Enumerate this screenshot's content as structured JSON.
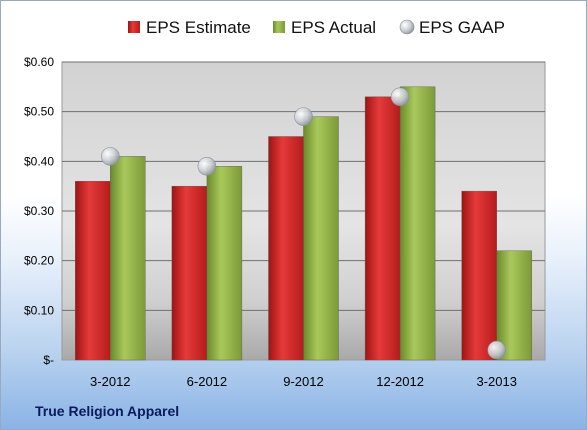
{
  "chart_data": {
    "type": "bar",
    "categories": [
      "3-2012",
      "6-2012",
      "9-2012",
      "12-2012",
      "3-2013"
    ],
    "series": [
      {
        "name": "EPS Estimate",
        "values": [
          0.36,
          0.35,
          0.45,
          0.53,
          0.34
        ],
        "color": "#c8201f"
      },
      {
        "name": "EPS Actual",
        "values": [
          0.41,
          0.39,
          0.49,
          0.55,
          0.22
        ],
        "color": "#86a840"
      },
      {
        "name": "EPS GAAP",
        "values": [
          0.41,
          0.39,
          0.49,
          0.53,
          0.02
        ],
        "color": "#b8bcc4",
        "marker": "circle"
      }
    ],
    "ylim": [
      0,
      0.6
    ],
    "yticks": [
      0,
      0.1,
      0.2,
      0.3,
      0.4,
      0.5,
      0.6
    ],
    "ytick_labels": [
      "$-",
      "$0.10",
      "$0.20",
      "$0.30",
      "$0.40",
      "$0.50",
      "$0.60"
    ],
    "grid": true,
    "legend_position": "top"
  },
  "footer": {
    "label": "True Religion Apparel"
  }
}
